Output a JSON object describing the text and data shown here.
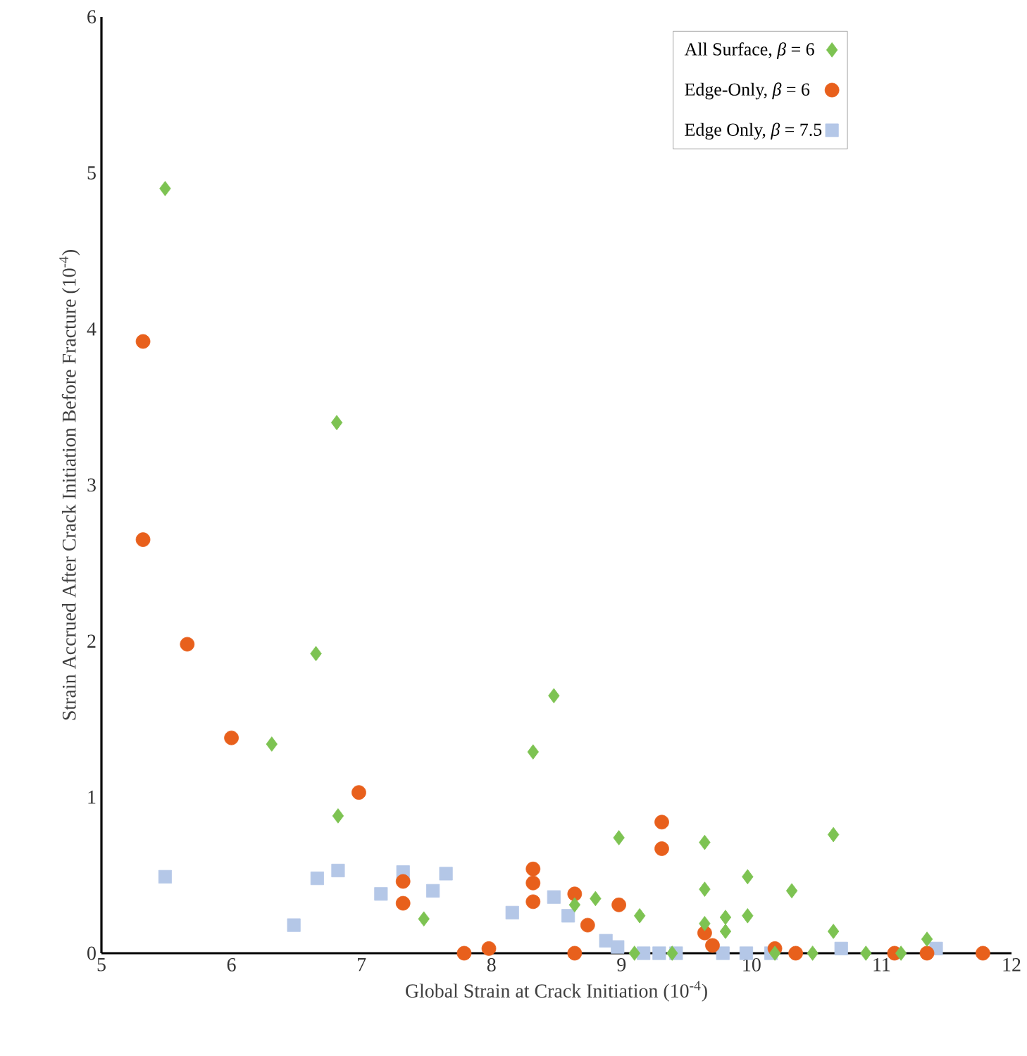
{
  "chart_data": {
    "type": "scatter",
    "xlabel": "Global Strain at Crack Initiation (10$^{-4}$)",
    "ylabel": "Strain Accrued After Crack Initiation Before Fracture (10$^{-4}$)",
    "xlim": [
      5,
      12
    ],
    "ylim": [
      0,
      6
    ],
    "xticks": [
      5,
      6,
      7,
      8,
      9,
      10,
      11,
      12
    ],
    "yticks": [
      0,
      1,
      2,
      3,
      4,
      5,
      6
    ],
    "grid": false,
    "legend": "top right",
    "series": [
      {
        "name": "All Surface, *β* = 6",
        "color": "#7dc352",
        "marker": "diamond",
        "x": [
          5.49,
          6.81,
          6.65,
          6.31,
          6.82,
          7.48,
          8.48,
          8.32,
          8.98,
          9.64,
          10.63,
          9.97,
          9.64,
          10.31,
          8.8,
          8.64,
          9.14,
          9.97,
          9.8,
          9.64,
          9.8,
          10.63,
          11.35,
          9.1,
          9.39,
          10.18,
          10.47,
          10.88,
          11.15
        ],
        "values": [
          4.9,
          3.4,
          1.92,
          1.34,
          0.88,
          0.22,
          1.65,
          1.29,
          0.74,
          0.71,
          0.76,
          0.49,
          0.41,
          0.4,
          0.35,
          0.31,
          0.24,
          0.24,
          0.23,
          0.19,
          0.14,
          0.14,
          0.09,
          0,
          0,
          0,
          0,
          0,
          0
        ]
      },
      {
        "name": "Edge-Only, *β* = 6",
        "color": "#e8601c",
        "marker": "circle",
        "x": [
          5.32,
          5.32,
          5.66,
          6.0,
          6.98,
          7.32,
          7.32,
          8.32,
          8.32,
          8.32,
          7.79,
          7.98,
          8.64,
          8.74,
          8.98,
          9.31,
          9.31,
          8.64,
          9.64,
          9.7,
          10.18,
          10.34,
          11.1,
          11.35,
          11.78
        ],
        "values": [
          3.92,
          2.65,
          1.98,
          1.38,
          1.03,
          0.46,
          0.32,
          0.54,
          0.45,
          0.33,
          0,
          0.03,
          0.38,
          0.18,
          0.31,
          0.84,
          0.67,
          0,
          0.13,
          0.05,
          0.03,
          0,
          0,
          0,
          0
        ]
      },
      {
        "name": "Edge Only, *β* = 7.5",
        "color": "#b4c7e7",
        "marker": "square",
        "x": [
          5.49,
          6.48,
          6.66,
          6.82,
          7.15,
          7.32,
          7.55,
          7.65,
          8.16,
          8.48,
          8.59,
          8.88,
          8.97,
          9.17,
          9.29,
          9.42,
          9.78,
          9.96,
          10.15,
          10.69,
          11.42
        ],
        "values": [
          0.49,
          0.18,
          0.48,
          0.53,
          0.38,
          0.52,
          0.4,
          0.51,
          0.26,
          0.36,
          0.24,
          0.08,
          0.04,
          0,
          0,
          0,
          0,
          0,
          0,
          0.03,
          0.03
        ]
      }
    ]
  }
}
